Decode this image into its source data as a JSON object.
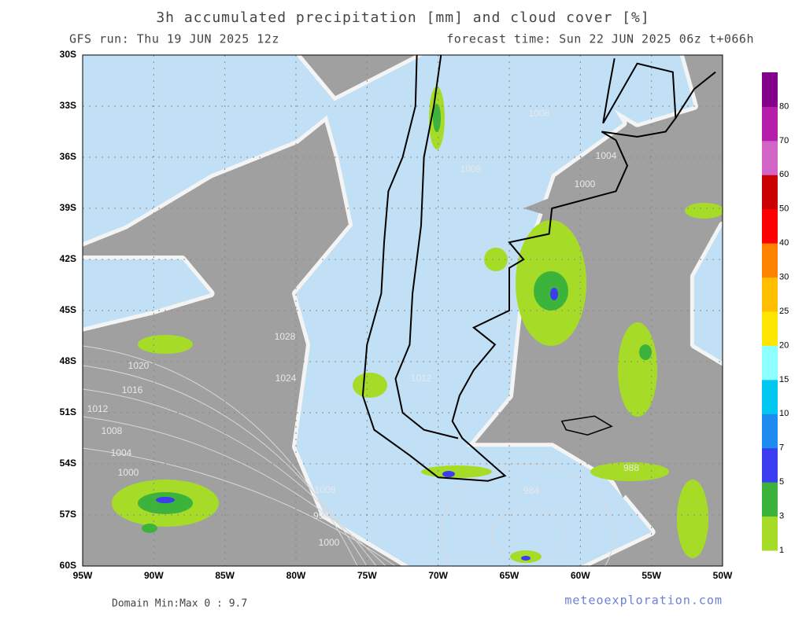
{
  "header": {
    "title": "3h accumulated precipitation [mm] and cloud cover [%]",
    "run": "GFS run: Thu 19 JUN 2025 12z",
    "forecast": "forecast time: Sun 22 JUN 2025 06z  t+066h"
  },
  "axes": {
    "lon_labels": [
      "95W",
      "90W",
      "85W",
      "80W",
      "75W",
      "70W",
      "65W",
      "60W",
      "55W",
      "50W"
    ],
    "lat_labels": [
      "30S",
      "33S",
      "36S",
      "39S",
      "42S",
      "45S",
      "48S",
      "51S",
      "54S",
      "57S",
      "60S"
    ]
  },
  "colorbar": {
    "labels": [
      "1",
      "3",
      "5",
      "7",
      "10",
      "15",
      "20",
      "25",
      "30",
      "40",
      "50",
      "60",
      "70",
      "80"
    ],
    "colors": [
      "#a6dc28",
      "#3cb43c",
      "#3c3cf0",
      "#1e8cf0",
      "#00c8f0",
      "#8cffff",
      "#ffe600",
      "#ffbe00",
      "#ff8200",
      "#ff0000",
      "#c80000",
      "#d264c8",
      "#b41eaa",
      "#82008c"
    ]
  },
  "isobars": [
    "1008",
    "1004",
    "1000",
    "1008",
    "1028",
    "1020",
    "1016",
    "1012",
    "1008",
    "1004",
    "1000",
    "1024",
    "1012",
    "988",
    "984",
    "1008",
    "994",
    "1000"
  ],
  "footer": {
    "minmax": "Domain Min:Max 0 : 9.7",
    "site": "meteoexploration.com"
  }
}
